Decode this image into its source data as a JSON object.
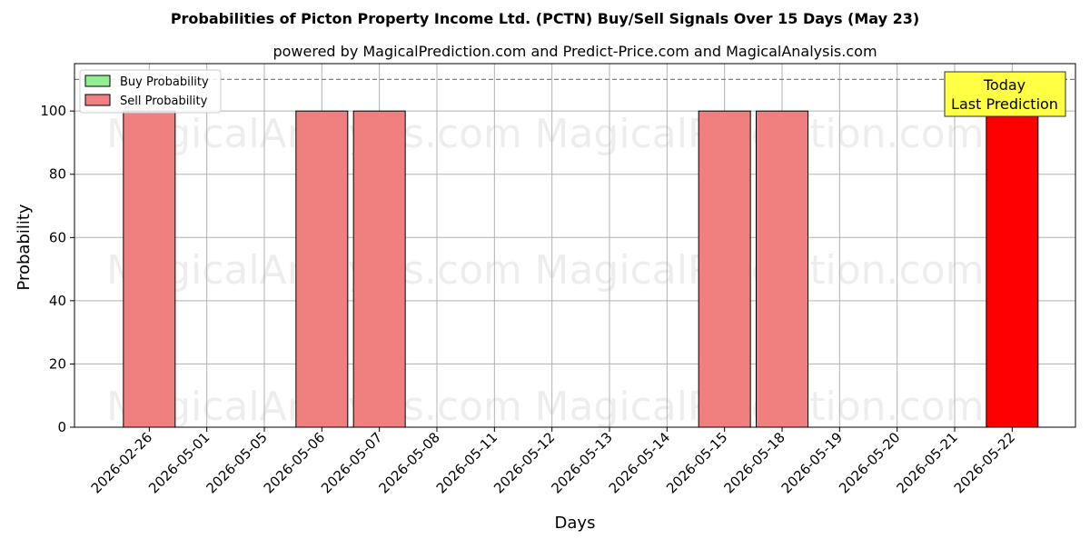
{
  "chart_data": {
    "type": "bar",
    "title": "Probabilities of Picton Property Income Ltd. (PCTN) Buy/Sell Signals Over 15 Days (May 23)",
    "subtitle": "powered by MagicalPrediction.com and Predict-Price.com and MagicalAnalysis.com",
    "xlabel": "Days",
    "ylabel": "Probability",
    "ylim": [
      0,
      115
    ],
    "yticks": [
      0,
      20,
      40,
      60,
      80,
      100
    ],
    "grid": true,
    "legend_placement": "top-left",
    "reference_line": 110,
    "x_ticks": [
      "2026-02-26",
      "2026-05-01",
      "2026-05-05",
      "2026-05-06",
      "2026-05-07",
      "2026-05-08",
      "2026-05-11",
      "2026-05-12",
      "2026-05-13",
      "2026-05-14",
      "2026-05-15",
      "2026-05-18",
      "2026-05-19",
      "2026-05-20",
      "2026-05-21",
      "2026-05-22"
    ],
    "series": [
      {
        "name": "Buy Probability",
        "color": "#90ee90",
        "bars": []
      },
      {
        "name": "Sell Probability",
        "color": "#f08080",
        "bars": [
          {
            "date": "2026-02-26",
            "value": 100
          },
          {
            "date": "2026-05-06",
            "value": 100
          },
          {
            "date": "2026-05-07",
            "value": 100
          },
          {
            "date": "2026-05-15",
            "value": 100
          },
          {
            "date": "2026-05-18",
            "value": 100
          }
        ]
      }
    ],
    "today_bar": {
      "date": "2026-05-22",
      "value": 100,
      "color": "#ff0000"
    },
    "annotation": {
      "line1": "Today",
      "line2": "Last Prediction",
      "background": "#ffff44"
    },
    "watermarks": [
      "MagicalAnalysis.com",
      "MagicalPrediction.com"
    ]
  }
}
